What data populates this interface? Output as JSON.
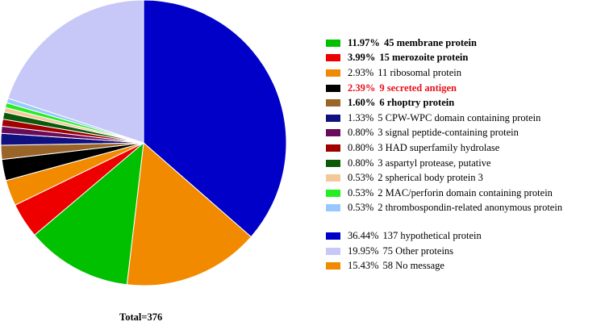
{
  "chart_data": {
    "type": "pie",
    "start": "12 o'clock, clockwise",
    "slices": [
      {
        "label": "hypothetical protein",
        "count": 137,
        "percent": 36.44,
        "color": "#0000c8"
      },
      {
        "label": "No message",
        "count": 58,
        "percent": 15.43,
        "color": "#f28a00"
      },
      {
        "label": "membrane protein",
        "count": 45,
        "percent": 11.97,
        "color": "#00c000"
      },
      {
        "label": "merozoite protein",
        "count": 15,
        "percent": 3.99,
        "color": "#ee0000"
      },
      {
        "label": "ribosomal protein",
        "count": 11,
        "percent": 2.93,
        "color": "#f28a00"
      },
      {
        "label": "secreted antigen",
        "count": 9,
        "percent": 2.39,
        "color": "#000000"
      },
      {
        "label": "rhoptry protein",
        "count": 6,
        "percent": 1.6,
        "color": "#9a6428"
      },
      {
        "label": "CPW-WPC domain containing protein",
        "count": 5,
        "percent": 1.33,
        "color": "#101080"
      },
      {
        "label": "signal peptide-containing protein",
        "count": 3,
        "percent": 0.8,
        "color": "#6a0a5a"
      },
      {
        "label": "HAD superfamily hydrolase",
        "count": 3,
        "percent": 0.8,
        "color": "#a00000"
      },
      {
        "label": "aspartyl protease, putative",
        "count": 3,
        "percent": 0.8,
        "color": "#0a5a0a"
      },
      {
        "label": "spherical body protein 3",
        "count": 2,
        "percent": 0.53,
        "color": "#f5c89a"
      },
      {
        "label": "MAC/perforin domain containing protein",
        "count": 2,
        "percent": 0.53,
        "color": "#22ee22"
      },
      {
        "label": "thrombospondin-related anonymous protein",
        "count": 2,
        "percent": 0.53,
        "color": "#99c8ff"
      },
      {
        "label": "Other proteins",
        "count": 75,
        "percent": 19.95,
        "color": "#c8c8f8"
      }
    ],
    "legend": [
      {
        "percent_text": "11.97%",
        "text": "45 membrane protein",
        "color": "#00c000",
        "bold": true,
        "red": false
      },
      {
        "percent_text": "3.99%",
        "text": "15 merozoite protein",
        "color": "#ee0000",
        "bold": true,
        "red": false
      },
      {
        "percent_text": "2.93%",
        "text": "11 ribosomal protein",
        "color": "#f28a00",
        "bold": false,
        "red": false
      },
      {
        "percent_text": "2.39%",
        "text": "9 secreted antigen",
        "color": "#000000",
        "bold": true,
        "red": true
      },
      {
        "percent_text": "1.60%",
        "text": "6 rhoptry protein",
        "color": "#9a6428",
        "bold": true,
        "red": false
      },
      {
        "percent_text": "1.33%",
        "text": "5 CPW-WPC domain containing protein",
        "color": "#101080",
        "bold": false,
        "red": false
      },
      {
        "percent_text": "0.80%",
        "text": "3 signal peptide-containing protein",
        "color": "#6a0a5a",
        "bold": false,
        "red": false
      },
      {
        "percent_text": "0.80%",
        "text": "3 HAD superfamily hydrolase",
        "color": "#a00000",
        "bold": false,
        "red": false
      },
      {
        "percent_text": "0.80%",
        "text": "3 aspartyl protease, putative",
        "color": "#0a5a0a",
        "bold": false,
        "red": false
      },
      {
        "percent_text": "0.53%",
        "text": "2 spherical body protein 3",
        "color": "#f5c89a",
        "bold": false,
        "red": false
      },
      {
        "percent_text": "0.53%",
        "text": "2 MAC/perforin domain containing protein",
        "color": "#22ee22",
        "bold": false,
        "red": false
      },
      {
        "percent_text": "0.53%",
        "text": "2 thrombospondin-related anonymous protein",
        "color": "#99c8ff",
        "bold": false,
        "red": false
      },
      {
        "percent_text": "36.44%",
        "text": "137 hypothetical protein",
        "color": "#0000c8",
        "bold": false,
        "red": false,
        "group_start": true
      },
      {
        "percent_text": "19.95%",
        "text": "75 Other proteins",
        "color": "#c8c8f8",
        "bold": false,
        "red": false
      },
      {
        "percent_text": "15.43%",
        "text": "58 No message",
        "color": "#f28a00",
        "bold": false,
        "red": false
      }
    ],
    "total_text": "Total=376"
  }
}
